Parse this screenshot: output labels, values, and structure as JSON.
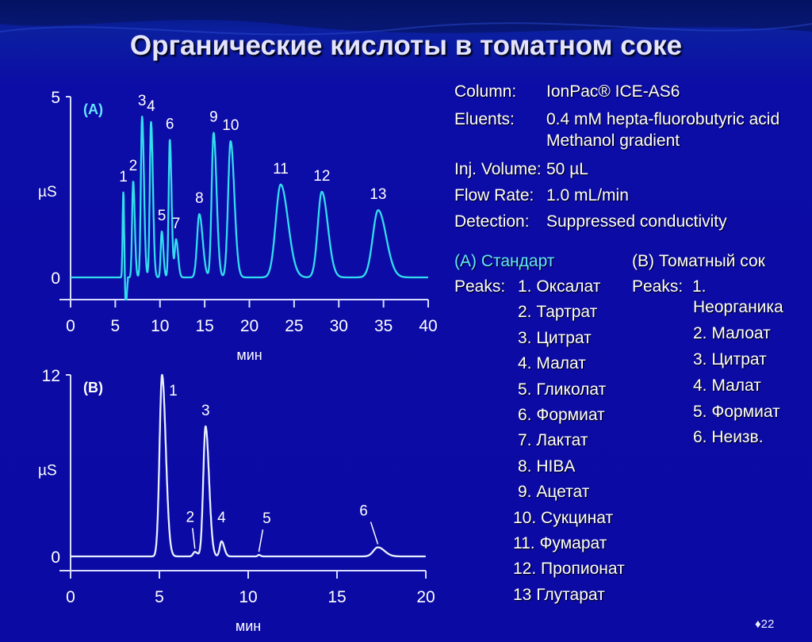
{
  "title": "Органические кислоты в томатном соке",
  "conditions": [
    {
      "label": "Column:",
      "value": "IonPac® ICE-AS6"
    },
    {
      "label": "Eluents:",
      "value": "0.4 mM hepta-fluorobutyric acid",
      "value2": "Methanol gradient"
    },
    {
      "label": "Inj. Volume:",
      "value": "50 µL"
    },
    {
      "label": "Flow Rate:",
      "value": "1.0 mL/min"
    },
    {
      "label": "Detection:",
      "value": "Suppressed  conductivity"
    }
  ],
  "standard": {
    "heading": "(A) Стандарт",
    "peaks_label": "Peaks:",
    "items": [
      "1.  Оксалат",
      "2.  Тартрат",
      "3.  Цитрат",
      "4.  Малат",
      "5.  Гликолат",
      "6.  Формиат",
      "7.  Лактат",
      "8.  HIBA",
      "9.  Ацетат",
      "10.  Сукцинат",
      "11.  Фумарат",
      "12.  Пропионат",
      "13  Глутарат"
    ]
  },
  "sample": {
    "heading": "(B) Томатный сок",
    "peaks_label": "Peaks:",
    "items": [
      "1.",
      "Неорганика",
      "2. Малоат",
      "3. Цитрат",
      "4. Малат",
      "5. Формиат",
      "6. Неизв."
    ]
  },
  "page_number": "22",
  "colors": {
    "trace_a": "#33ddee",
    "trace_b": "#e8f0ff",
    "axis": "#d8dcff",
    "label_a": "#66e6ff"
  },
  "chart_data": [
    {
      "type": "line",
      "panel_label": "(A)",
      "xlabel": "мин",
      "ylabel": "µS",
      "xlim": [
        0,
        40
      ],
      "ylim": [
        -0.6,
        5
      ],
      "xticks": [
        "0",
        "5",
        "10",
        "15",
        "20",
        "25",
        "30",
        "35",
        "40"
      ],
      "yticks": [
        "0",
        "5"
      ],
      "peaks": [
        {
          "label": "1",
          "t": 5.9,
          "h": 2.35,
          "w": 0.08
        },
        {
          "label": "2",
          "t": 7.0,
          "h": 2.65,
          "w": 0.12
        },
        {
          "label": "3",
          "t": 8.0,
          "h": 4.45,
          "w": 0.14
        },
        {
          "label": "4",
          "t": 9.0,
          "h": 4.3,
          "w": 0.14
        },
        {
          "label": "5",
          "t": 10.2,
          "h": 1.27,
          "w": 0.12
        },
        {
          "label": "6",
          "t": 11.1,
          "h": 3.8,
          "w": 0.13
        },
        {
          "label": "7",
          "t": 11.8,
          "h": 1.05,
          "w": 0.15
        },
        {
          "label": "8",
          "t": 14.4,
          "h": 1.75,
          "w": 0.25
        },
        {
          "label": "9",
          "t": 16.0,
          "h": 4.0,
          "w": 0.22
        },
        {
          "label": "10",
          "t": 17.9,
          "h": 3.77,
          "w": 0.28
        },
        {
          "label": "11",
          "t": 23.5,
          "h": 2.57,
          "w": 0.55
        },
        {
          "label": "12",
          "t": 28.1,
          "h": 2.37,
          "w": 0.45
        },
        {
          "label": "13",
          "t": 34.4,
          "h": 1.86,
          "w": 0.6
        }
      ]
    },
    {
      "type": "line",
      "panel_label": "(B)",
      "xlabel": "мин",
      "ylabel": "µS",
      "xlim": [
        0,
        20
      ],
      "ylim": [
        -0.9,
        12
      ],
      "xticks": [
        "0",
        "5",
        "10",
        "15",
        "20"
      ],
      "yticks": [
        "0",
        "12"
      ],
      "peaks": [
        {
          "label": "1",
          "t": 5.15,
          "h": 12.0,
          "w": 0.14
        },
        {
          "label": "2",
          "t": 7.0,
          "h": 0.3,
          "w": 0.1
        },
        {
          "label": "3",
          "t": 7.6,
          "h": 8.6,
          "w": 0.13
        },
        {
          "label": "4",
          "t": 8.5,
          "h": 1.0,
          "w": 0.1
        },
        {
          "label": "5",
          "t": 10.6,
          "h": 0.1,
          "w": 0.06
        },
        {
          "label": "6",
          "t": 17.3,
          "h": 0.6,
          "w": 0.25
        }
      ]
    }
  ]
}
